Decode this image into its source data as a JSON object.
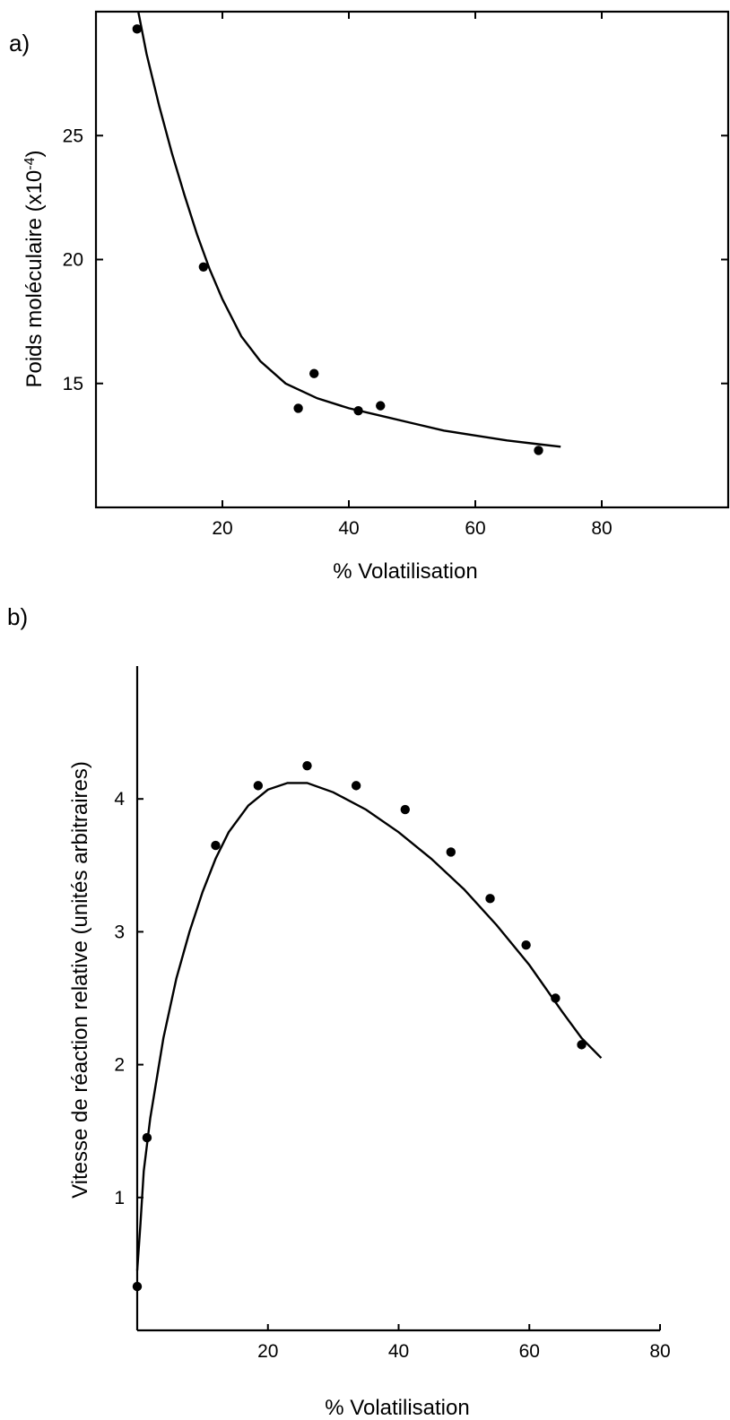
{
  "chart_data": [
    {
      "type": "scatter",
      "panel_label": "a)",
      "xlabel": "% Volatilisation",
      "ylabel": "Poids moléculaire (x10",
      "ylabel_exp": "-4",
      "ylabel_close": ")",
      "xlim": [
        0,
        100
      ],
      "ylim": [
        10,
        30
      ],
      "x_ticks": [
        20,
        40,
        60,
        80
      ],
      "y_ticks": [
        15,
        20,
        25
      ],
      "grid": false,
      "series": [
        {
          "x": [
            6.5,
            17,
            32,
            34.5,
            41.5,
            45,
            70
          ],
          "y": [
            29.3,
            19.7,
            14,
            15.4,
            13.9,
            14.1,
            12.3
          ]
        }
      ],
      "curve": {
        "x": [
          6.7,
          8,
          10,
          12,
          14,
          16,
          18,
          20,
          23,
          26,
          30,
          35,
          40,
          45,
          50,
          55,
          60,
          65,
          70,
          73.5
        ],
        "y": [
          30,
          28.3,
          26.2,
          24.3,
          22.6,
          21.0,
          19.6,
          18.4,
          16.9,
          15.9,
          15.0,
          14.4,
          14.0,
          13.7,
          13.4,
          13.1,
          12.9,
          12.7,
          12.55,
          12.45
        ]
      }
    },
    {
      "type": "scatter",
      "panel_label": "b)",
      "xlabel": "% Volatilisation",
      "ylabel": "Vitesse de réaction relative (unités arbitraires)",
      "xlim": [
        0,
        80
      ],
      "ylim": [
        0,
        5
      ],
      "x_ticks": [
        20,
        40,
        60,
        80
      ],
      "y_ticks": [
        1,
        2,
        3,
        4
      ],
      "grid": false,
      "series": [
        {
          "x": [
            0,
            1.5,
            12,
            18.5,
            26,
            33.5,
            41,
            48,
            54,
            59.5,
            64,
            68
          ],
          "y": [
            0.33,
            1.45,
            3.65,
            4.1,
            4.25,
            4.1,
            3.92,
            3.6,
            3.25,
            2.9,
            2.5,
            2.15
          ]
        }
      ],
      "curve": {
        "x": [
          0,
          0.5,
          1,
          2,
          4,
          6,
          8,
          10,
          12,
          14,
          17,
          20,
          23,
          26,
          30,
          35,
          40,
          45,
          50,
          55,
          60,
          65,
          68,
          71
        ],
        "y": [
          0.45,
          0.8,
          1.2,
          1.6,
          2.2,
          2.65,
          3.0,
          3.3,
          3.55,
          3.75,
          3.95,
          4.07,
          4.12,
          4.12,
          4.05,
          3.92,
          3.75,
          3.55,
          3.32,
          3.05,
          2.75,
          2.4,
          2.2,
          2.05
        ]
      }
    }
  ]
}
